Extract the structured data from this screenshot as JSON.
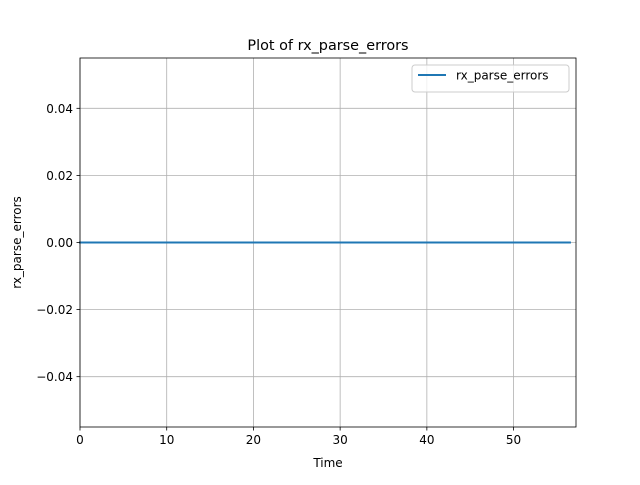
{
  "chart_data": {
    "type": "line",
    "title": "Plot of rx_parse_errors",
    "xlabel": "Time",
    "ylabel": "rx_parse_errors",
    "xlim": [
      0,
      57.2
    ],
    "ylim": [
      -0.055,
      0.055
    ],
    "xticks": [
      0,
      10,
      20,
      30,
      40,
      50
    ],
    "yticks": [
      -0.04,
      -0.02,
      0.0,
      0.02,
      0.04
    ],
    "xtick_labels": [
      "0",
      "10",
      "20",
      "30",
      "40",
      "50"
    ],
    "ytick_labels": [
      "−0.04",
      "−0.02",
      "0.00",
      "0.02",
      "0.04"
    ],
    "grid": true,
    "legend_position": "top-right",
    "series": [
      {
        "name": "rx_parse_errors",
        "color": "#1f77b4",
        "x": [
          0,
          5,
          10,
          15,
          20,
          25,
          30,
          35,
          40,
          45,
          50,
          55,
          56.5
        ],
        "y": [
          0,
          0,
          0,
          0,
          0,
          0,
          0,
          0,
          0,
          0,
          0,
          0,
          0
        ]
      }
    ]
  }
}
